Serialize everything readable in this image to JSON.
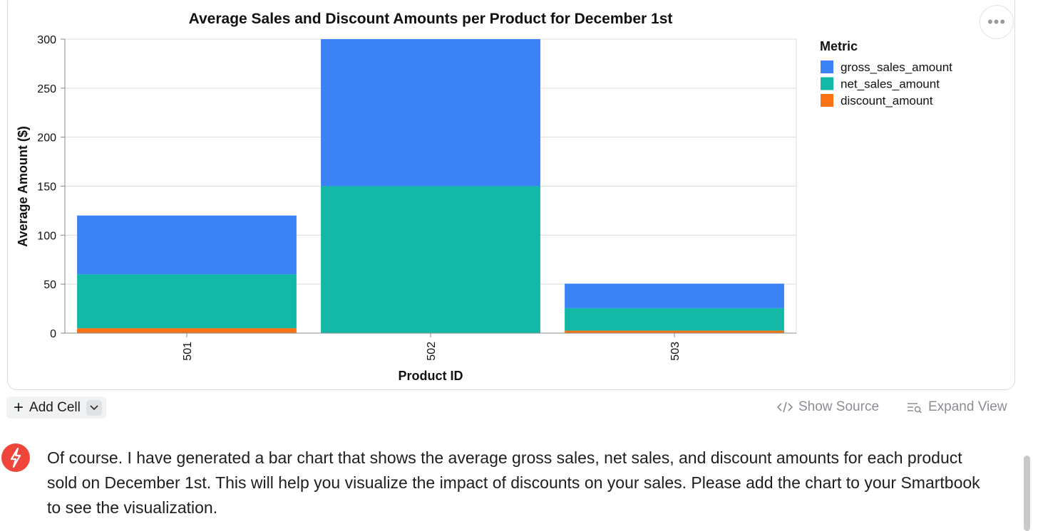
{
  "chart_data": {
    "type": "bar",
    "stacked": true,
    "title": "Average Sales and Discount Amounts per Product for December 1st",
    "xlabel": "Product ID",
    "ylabel": "Average Amount ($)",
    "categories": [
      "501",
      "502",
      "503"
    ],
    "ylim": [
      0,
      300
    ],
    "yticks": [
      0,
      50,
      100,
      150,
      200,
      250,
      300
    ],
    "grid": true,
    "legend_title": "Metric",
    "legend_position": "right",
    "series": [
      {
        "name": "gross_sales_amount",
        "color": "#3b82f6",
        "values": [
          60,
          150,
          25
        ]
      },
      {
        "name": "net_sales_amount",
        "color": "#14b8a6",
        "values": [
          55,
          150,
          23
        ]
      },
      {
        "name": "discount_amount",
        "color": "#f97316",
        "values": [
          5,
          0,
          2.5
        ]
      }
    ]
  },
  "toolbar": {
    "add_cell_label": "Add Cell",
    "show_source_label": "Show Source",
    "expand_view_label": "Expand View"
  },
  "icons": {
    "more": "more-horizontal-icon",
    "add": "plus-icon",
    "dropdown": "chevron-down-icon",
    "source": "code-icon",
    "expand": "expand-view-icon",
    "assistant": "lightning-bolt-icon"
  },
  "assistant": {
    "message": "Of course. I have generated a bar chart that shows the average gross sales, net sales, and discount amounts for each product sold on December 1st. This will help you visualize the impact of discounts on your sales. Please add the chart to your Smartbook to see the visualization."
  }
}
